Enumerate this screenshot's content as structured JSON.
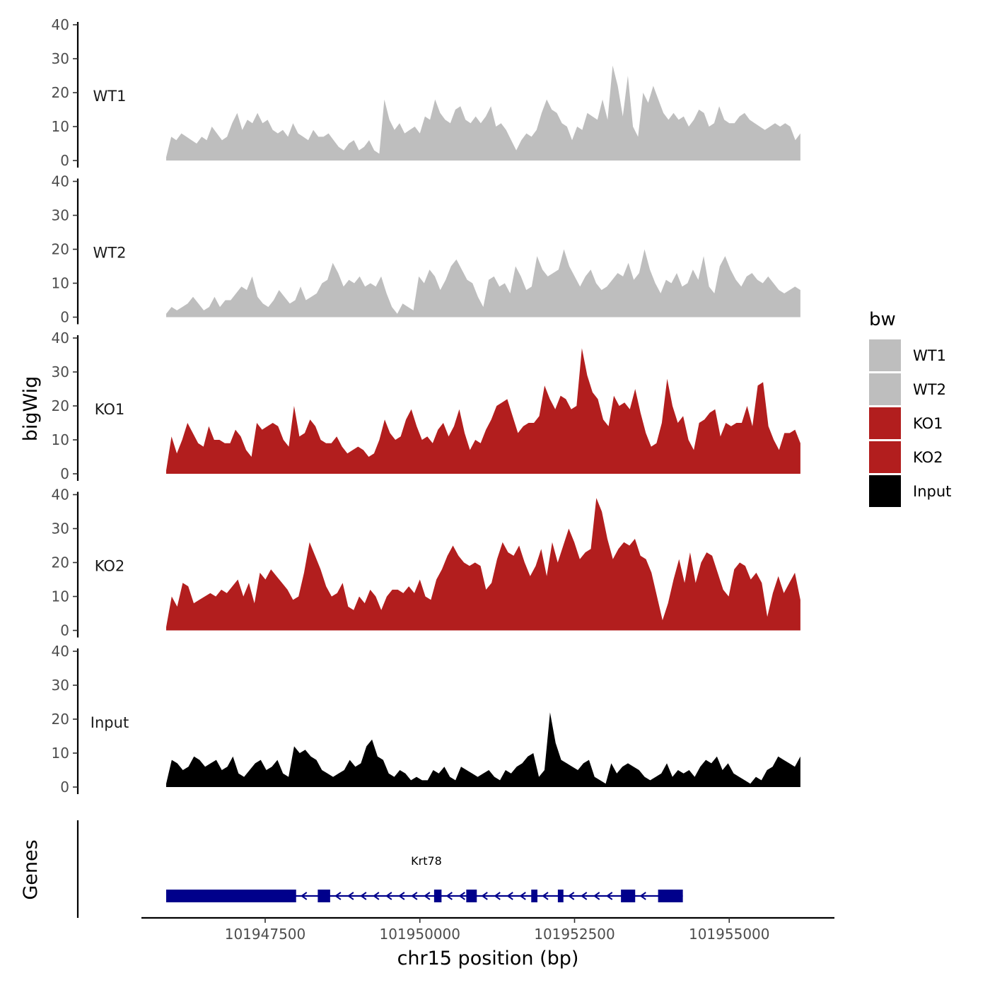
{
  "chart_data": {
    "type": "area",
    "xlabel": "chr15 position (bp)",
    "ylabel": "bigWig",
    "genes_label": "Genes",
    "xlim": [
      101945500,
      101956700
    ],
    "ylim": [
      0,
      40
    ],
    "x_ticks": [
      101947500,
      101950000,
      101952500,
      101955000
    ],
    "x_tick_labels": [
      "101947500",
      "101950000",
      "101952500",
      "101955000"
    ],
    "y_ticks": [
      0,
      10,
      20,
      30,
      40
    ],
    "y_tick_labels": [
      "0",
      "10",
      "20",
      "30",
      "40"
    ],
    "x_start": 101945900,
    "x_end": 101956150,
    "tracks": [
      {
        "name": "WT1",
        "color": "#bebebe",
        "values": [
          1,
          7,
          6,
          8,
          7,
          6,
          5,
          7,
          6,
          10,
          8,
          6,
          7,
          11,
          14,
          9,
          12,
          11,
          14,
          11,
          12,
          9,
          8,
          9,
          7,
          11,
          8,
          7,
          6,
          9,
          7,
          7,
          8,
          6,
          4,
          3,
          5,
          6,
          3,
          4,
          6,
          3,
          2,
          18,
          12,
          9,
          11,
          8,
          9,
          10,
          8,
          13,
          12,
          18,
          14,
          12,
          11,
          15,
          16,
          12,
          11,
          13,
          11,
          13,
          16,
          10,
          11,
          9,
          6,
          3,
          6,
          8,
          7,
          9,
          14,
          18,
          15,
          14,
          11,
          10,
          6,
          10,
          9,
          14,
          13,
          12,
          18,
          12,
          28,
          22,
          13,
          25,
          10,
          7,
          20,
          17,
          22,
          18,
          14,
          12,
          14,
          12,
          13,
          10,
          12,
          15,
          14,
          10,
          11,
          16,
          12,
          11,
          11,
          13,
          14,
          12,
          11,
          10,
          9,
          10,
          11,
          10,
          11,
          10,
          6,
          8
        ]
      },
      {
        "name": "WT2",
        "color": "#bebebe",
        "values": [
          1,
          3,
          2,
          3,
          4,
          6,
          4,
          2,
          3,
          6,
          3,
          5,
          5,
          7,
          9,
          8,
          12,
          6,
          4,
          3,
          5,
          8,
          6,
          4,
          5,
          9,
          5,
          6,
          7,
          10,
          11,
          16,
          13,
          9,
          11,
          10,
          12,
          9,
          10,
          9,
          12,
          7,
          3,
          1,
          4,
          3,
          2,
          12,
          10,
          14,
          12,
          8,
          11,
          15,
          17,
          14,
          11,
          10,
          6,
          3,
          11,
          12,
          9,
          10,
          7,
          15,
          12,
          8,
          9,
          18,
          14,
          12,
          13,
          14,
          20,
          15,
          12,
          9,
          12,
          14,
          10,
          8,
          9,
          11,
          13,
          12,
          16,
          11,
          13,
          20,
          14,
          10,
          7,
          11,
          10,
          13,
          9,
          10,
          14,
          11,
          18,
          9,
          7,
          15,
          18,
          14,
          11,
          9,
          12,
          13,
          11,
          10,
          12,
          10,
          8,
          7,
          8,
          9,
          8
        ]
      },
      {
        "name": "KO1",
        "color": "#b21e1e",
        "values": [
          1,
          11,
          6,
          10,
          15,
          12,
          9,
          8,
          14,
          10,
          10,
          9,
          9,
          13,
          11,
          7,
          5,
          15,
          13,
          14,
          15,
          14,
          10,
          8,
          20,
          11,
          12,
          16,
          14,
          10,
          9,
          9,
          11,
          8,
          6,
          7,
          8,
          7,
          5,
          6,
          10,
          16,
          12,
          10,
          11,
          16,
          19,
          14,
          10,
          11,
          9,
          13,
          15,
          11,
          14,
          19,
          12,
          7,
          10,
          9,
          13,
          16,
          20,
          21,
          22,
          17,
          12,
          14,
          15,
          15,
          17,
          26,
          22,
          19,
          23,
          22,
          19,
          20,
          37,
          29,
          24,
          22,
          16,
          14,
          23,
          20,
          21,
          19,
          25,
          18,
          12,
          8,
          9,
          15,
          28,
          20,
          15,
          17,
          10,
          7,
          15,
          16,
          18,
          19,
          11,
          15,
          14,
          15,
          15,
          20,
          14,
          26,
          27,
          14,
          10,
          7,
          12,
          12,
          13,
          9
        ]
      },
      {
        "name": "KO2",
        "color": "#b21e1e",
        "values": [
          1,
          10,
          7,
          14,
          13,
          8,
          9,
          10,
          11,
          10,
          12,
          11,
          13,
          15,
          10,
          14,
          8,
          17,
          15,
          18,
          16,
          14,
          12,
          9,
          10,
          17,
          26,
          22,
          18,
          13,
          10,
          11,
          14,
          7,
          6,
          10,
          8,
          12,
          10,
          6,
          10,
          12,
          12,
          11,
          13,
          11,
          15,
          10,
          9,
          15,
          18,
          22,
          25,
          22,
          20,
          19,
          20,
          19,
          12,
          14,
          21,
          26,
          23,
          22,
          25,
          20,
          16,
          19,
          24,
          16,
          26,
          20,
          25,
          30,
          26,
          21,
          23,
          24,
          39,
          35,
          27,
          21,
          24,
          26,
          25,
          27,
          22,
          21,
          17,
          10,
          3,
          8,
          15,
          21,
          14,
          23,
          14,
          20,
          23,
          22,
          17,
          12,
          10,
          18,
          20,
          19,
          15,
          17,
          14,
          4,
          11,
          16,
          11,
          14,
          17,
          9
        ]
      },
      {
        "name": "Input",
        "color": "#000000",
        "values": [
          1,
          8,
          7,
          5,
          6,
          9,
          8,
          6,
          7,
          8,
          5,
          6,
          9,
          4,
          3,
          5,
          7,
          8,
          5,
          6,
          8,
          4,
          3,
          12,
          10,
          11,
          9,
          8,
          5,
          4,
          3,
          4,
          5,
          8,
          6,
          7,
          12,
          14,
          9,
          8,
          4,
          3,
          5,
          4,
          2,
          3,
          2,
          2,
          5,
          4,
          6,
          3,
          2,
          6,
          5,
          4,
          3,
          4,
          5,
          3,
          2,
          5,
          4,
          6,
          7,
          9,
          10,
          3,
          5,
          22,
          13,
          8,
          7,
          6,
          5,
          7,
          8,
          3,
          2,
          1,
          7,
          4,
          6,
          7,
          6,
          5,
          3,
          2,
          3,
          4,
          7,
          3,
          5,
          4,
          5,
          3,
          6,
          8,
          7,
          9,
          5,
          7,
          4,
          3,
          2,
          1,
          3,
          2,
          5,
          6,
          9,
          8,
          7,
          6,
          9
        ]
      }
    ],
    "gene": {
      "name": "Krt78",
      "color": "#00008b",
      "start": 101945900,
      "end": 101954250,
      "strand": "-",
      "exons": [
        [
          101945900,
          101948000
        ],
        [
          101948350,
          101948550
        ],
        [
          101950230,
          101950350
        ],
        [
          101950750,
          101950920
        ],
        [
          101951800,
          101951900
        ],
        [
          101952230,
          101952320
        ],
        [
          101953250,
          101953480
        ],
        [
          101953850,
          101954250
        ]
      ]
    },
    "legend": {
      "title": "bw",
      "entries": [
        {
          "label": "WT1",
          "color": "#bebebe"
        },
        {
          "label": "WT2",
          "color": "#bebebe"
        },
        {
          "label": "KO1",
          "color": "#b21e1e"
        },
        {
          "label": "KO2",
          "color": "#b21e1e"
        },
        {
          "label": "Input",
          "color": "#000000"
        }
      ]
    }
  }
}
